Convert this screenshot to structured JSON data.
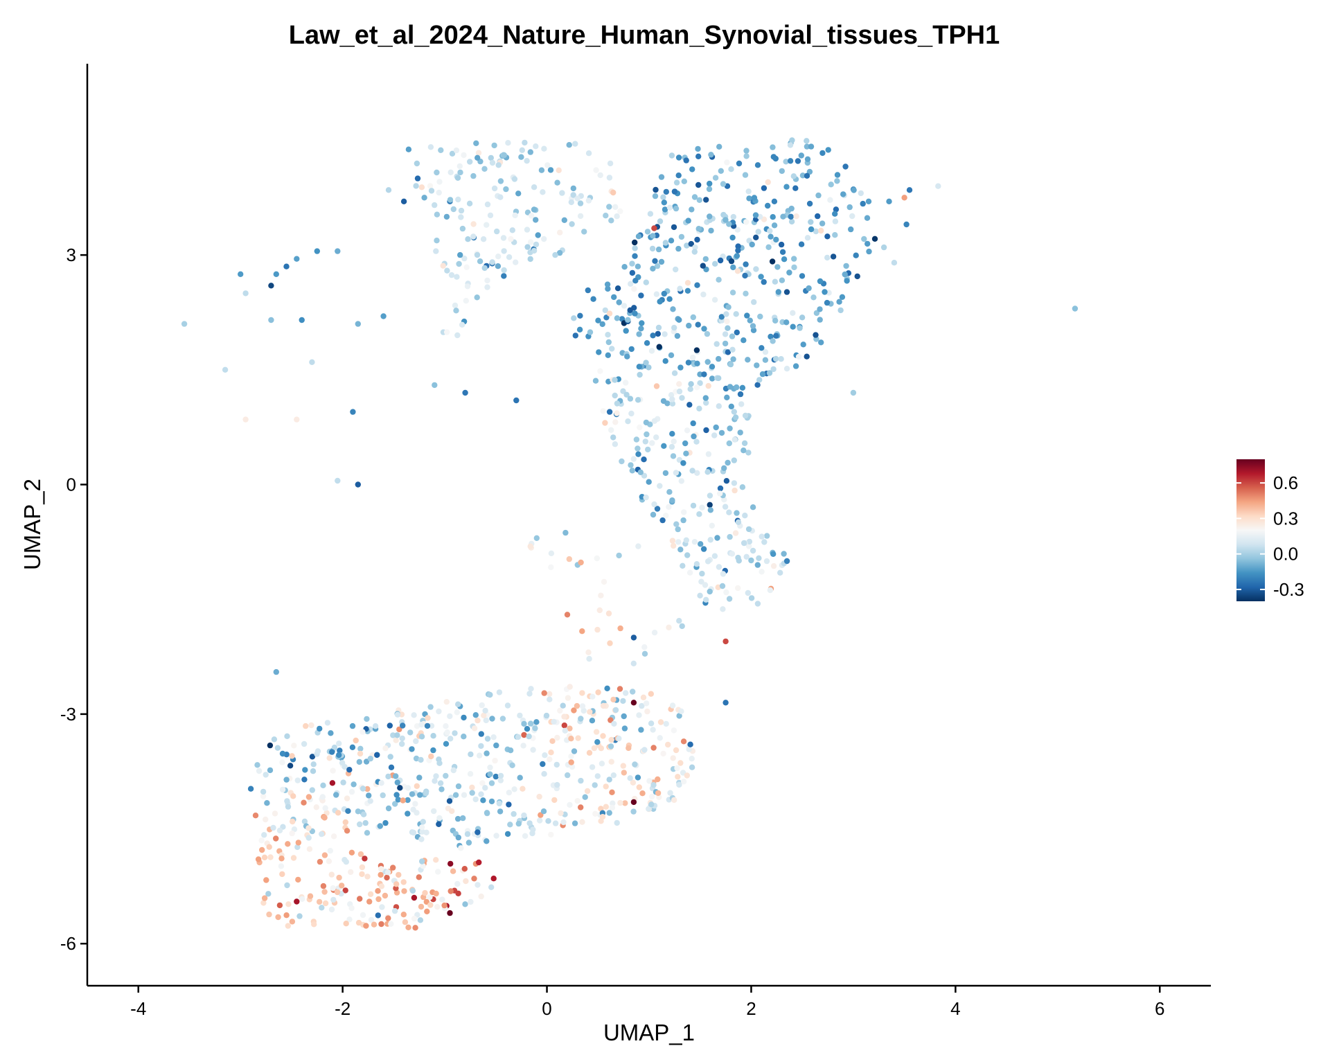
{
  "chart_data": {
    "type": "scatter",
    "title": "Law_et_al_2024_Nature_Human_Synovial_tissues_TPH1",
    "xlabel": "UMAP_1",
    "ylabel": "UMAP_2",
    "xlim": [
      -4.5,
      6.5
    ],
    "ylim": [
      -6.55,
      5.5
    ],
    "x_ticks": [
      -4,
      -2,
      0,
      2,
      4,
      6
    ],
    "x_tick_labels": [
      "-4",
      "-2",
      "0",
      "2",
      "4",
      "6"
    ],
    "y_ticks": [
      -6,
      -3,
      0,
      3
    ],
    "y_tick_labels": [
      "-6",
      "-3",
      "0",
      "3"
    ],
    "grid": false,
    "color_scale": {
      "min": -0.4,
      "max": 0.8,
      "ticks": [
        -0.3,
        0.0,
        0.3,
        0.6
      ],
      "tick_labels": [
        "-0.3",
        "0.0",
        "0.3",
        "0.6"
      ],
      "palette": [
        "#053061",
        "#2166ac",
        "#4393c3",
        "#92c5de",
        "#d1e5f0",
        "#f7f7f7",
        "#fddbc7",
        "#f4a582",
        "#d6604d",
        "#b2182b",
        "#67001f"
      ],
      "position": "right"
    },
    "scatter_points_subset": [
      {
        "x": 5.17,
        "y": 2.3,
        "v": -0.05
      },
      {
        "x": 3.83,
        "y": 3.9,
        "v": 0.1
      },
      {
        "x": 3.5,
        "y": 3.75,
        "v": 0.45
      },
      {
        "x": 3.52,
        "y": 3.4,
        "v": -0.2
      },
      {
        "x": 3.4,
        "y": 2.9,
        "v": 0.05
      },
      {
        "x": -3.55,
        "y": 2.1,
        "v": 0.0
      },
      {
        "x": -3.15,
        "y": 1.5,
        "v": 0.05
      },
      {
        "x": -2.95,
        "y": 0.85,
        "v": 0.25
      },
      {
        "x": -2.45,
        "y": 0.85,
        "v": 0.25
      },
      {
        "x": -2.05,
        "y": 0.05,
        "v": 0.05
      },
      {
        "x": -1.85,
        "y": 0.0,
        "v": -0.3
      },
      {
        "x": -1.9,
        "y": 0.95,
        "v": -0.2
      },
      {
        "x": -2.7,
        "y": 2.6,
        "v": -0.35
      },
      {
        "x": -2.05,
        "y": 3.05,
        "v": -0.1
      },
      {
        "x": -1.4,
        "y": 3.7,
        "v": -0.3
      },
      {
        "x": -1.1,
        "y": 1.3,
        "v": -0.05
      },
      {
        "x": 0.85,
        "y": -2.0,
        "v": -0.3
      },
      {
        "x": 0.2,
        "y": -1.7,
        "v": 0.5
      },
      {
        "x": 1.75,
        "y": -2.05,
        "v": 0.6
      },
      {
        "x": 0.85,
        "y": -2.85,
        "v": 0.8
      },
      {
        "x": 0.85,
        "y": -4.15,
        "v": 0.8
      },
      {
        "x": -1.3,
        "y": -5.4,
        "v": 0.7
      },
      {
        "x": -0.95,
        "y": -5.6,
        "v": 0.8
      },
      {
        "x": -2.45,
        "y": -5.45,
        "v": 0.7
      },
      {
        "x": -2.1,
        "y": -3.9,
        "v": 0.7
      },
      {
        "x": -2.65,
        "y": -2.45,
        "v": -0.1
      },
      {
        "x": 1.45,
        "y": 3.1,
        "v": 0.1
      },
      {
        "x": 2.4,
        "y": 4.5,
        "v": 0.0
      },
      {
        "x": 1.1,
        "y": 1.8,
        "v": -0.4
      },
      {
        "x": 1.05,
        "y": 3.35,
        "v": 0.6
      }
    ]
  }
}
